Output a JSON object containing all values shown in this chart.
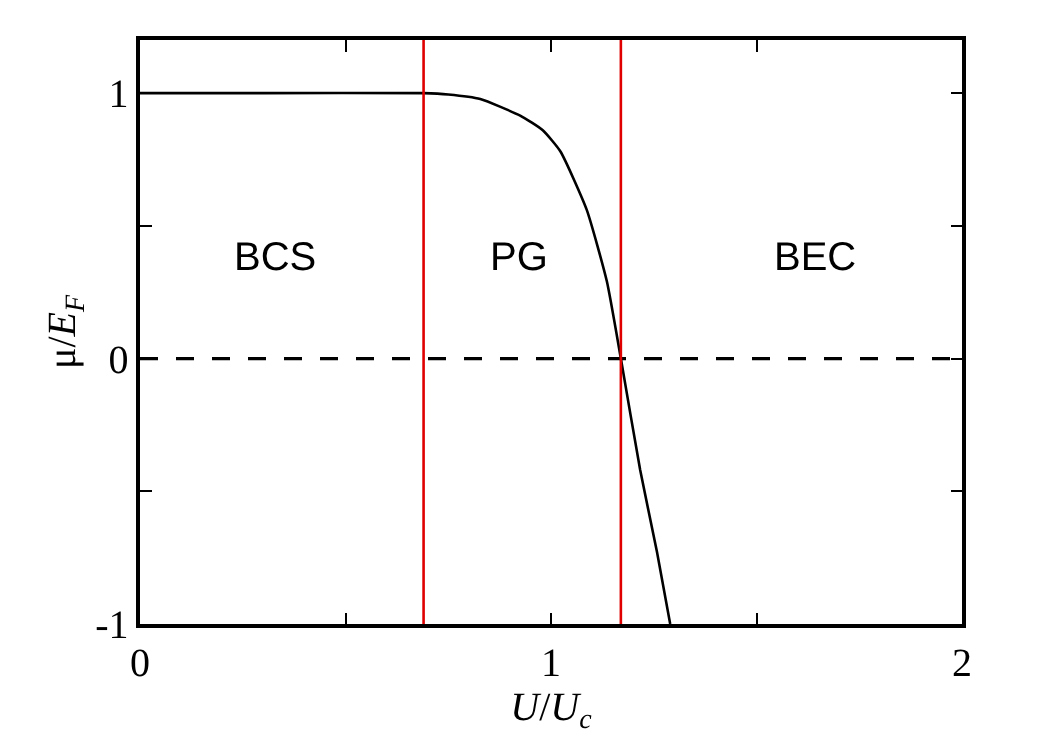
{
  "chart_data": {
    "type": "line",
    "xlabel": "U/U$_{c}$",
    "ylabel": "μ/E$_{F}$",
    "xlim": [
      0,
      2
    ],
    "ylim": [
      -1,
      1.2
    ],
    "xticks": [
      0,
      {
        "value": 0.5,
        "label": null
      },
      1,
      {
        "value": 1.5,
        "label": null
      },
      2
    ],
    "yticks": [
      -1,
      {
        "value": -0.5,
        "label": null
      },
      0,
      {
        "value": 0.5,
        "label": null
      },
      1
    ],
    "marker": "none",
    "line_style": "solid",
    "series": [
      {
        "color": "#000000",
        "x": [
          0,
          0.3,
          0.69,
          0.75,
          0.828,
          0.925,
          0.98,
          1.023,
          1.087,
          1.136,
          1.17,
          1.217,
          1.258,
          1.29
        ],
        "values": [
          1,
          1,
          1,
          0.995,
          0.978,
          0.915,
          0.86,
          0.78,
          0.56,
          0.29,
          0,
          -0.42,
          -0.73,
          -1
        ]
      }
    ],
    "ref_lines": [
      {
        "axis": "y",
        "value": 0,
        "color": "#000000",
        "line_style": "dashed"
      },
      {
        "axis": "x",
        "value": 0.69,
        "color": "#e00000",
        "line_style": "solid"
      },
      {
        "axis": "x",
        "value": 1.17,
        "color": "#e00000",
        "line_style": "solid"
      }
    ],
    "annotations": [
      "BCS",
      "PG",
      "BEC"
    ]
  }
}
